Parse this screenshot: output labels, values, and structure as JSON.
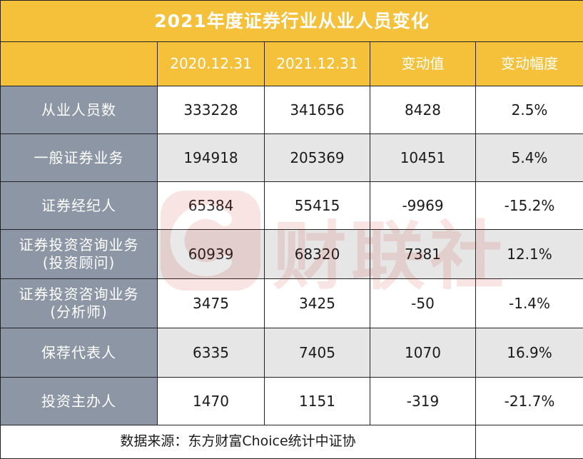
{
  "title": "2021年度证券行业从业人员变化",
  "columns": [
    "",
    "2020.12.31",
    "2021.12.31",
    "变动值",
    "变动幅度"
  ],
  "rows": [
    {
      "label": [
        "从业人员数"
      ],
      "v2020": "333228",
      "v2021": "341656",
      "change": "8428",
      "pct": "2.5%"
    },
    {
      "label": [
        "一般证券业务"
      ],
      "v2020": "194918",
      "v2021": "205369",
      "change": "10451",
      "pct": "5.4%"
    },
    {
      "label": [
        "证券经纪人"
      ],
      "v2020": "65384",
      "v2021": "55415",
      "change": "-9969",
      "pct": "-15.2%"
    },
    {
      "label": [
        "证券投资咨询业务",
        "(投资顾问)"
      ],
      "v2020": "60939",
      "v2021": "68320",
      "change": "7381",
      "pct": "12.1%"
    },
    {
      "label": [
        "证券投资咨询业务",
        "(分析师)"
      ],
      "v2020": "3475",
      "v2021": "3425",
      "change": "-50",
      "pct": "-1.4%"
    },
    {
      "label": [
        "保荐代表人"
      ],
      "v2020": "6335",
      "v2021": "7405",
      "change": "1070",
      "pct": "16.9%"
    },
    {
      "label": [
        "投资主办人"
      ],
      "v2020": "1470",
      "v2021": "1151",
      "change": "-319",
      "pct": "-21.7%"
    }
  ],
  "source": "数据来源：东方财富Choice统计中证协",
  "watermark": "财联社",
  "colors": {
    "header": "#f6c13a",
    "row_label": "#8d96a4",
    "alt_row": "#e6e6e6",
    "watermark": "#d42a2a"
  }
}
